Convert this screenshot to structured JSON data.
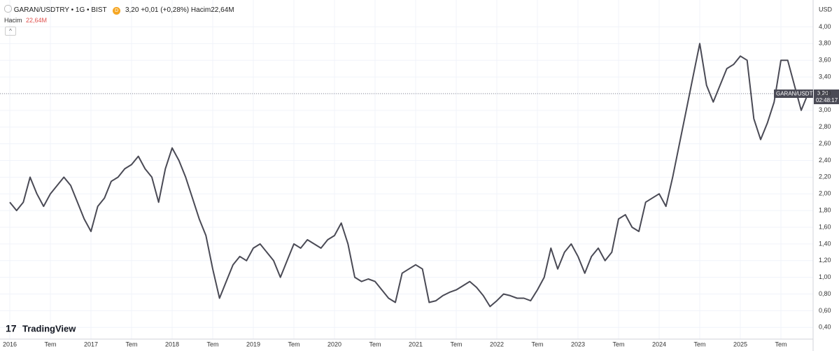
{
  "header": {
    "symbol": "GARAN/USDTRY • 1G • BIST",
    "badge": "D",
    "price": "3,20",
    "change": "+0,01 (+0,28%)",
    "volume_label": "Hacim",
    "volume_value": "22,64M"
  },
  "logo": "TradingView",
  "chart_data": {
    "type": "line",
    "y_axis_label": "USD",
    "grid": true,
    "price_tag": {
      "name": "GARAN/USDTRY",
      "value_label": "3,20",
      "countdown": "02:48:17"
    },
    "x": [
      "2016-01",
      "2016-02",
      "2016-03",
      "2016-04",
      "2016-05",
      "2016-06",
      "2016-07",
      "2016-08",
      "2016-09",
      "2016-10",
      "2016-11",
      "2016-12",
      "2017-01",
      "2017-02",
      "2017-03",
      "2017-04",
      "2017-05",
      "2017-06",
      "2017-07",
      "2017-08",
      "2017-09",
      "2017-10",
      "2017-11",
      "2017-12",
      "2018-01",
      "2018-02",
      "2018-03",
      "2018-04",
      "2018-05",
      "2018-06",
      "2018-07",
      "2018-08",
      "2018-09",
      "2018-10",
      "2018-11",
      "2018-12",
      "2019-01",
      "2019-02",
      "2019-03",
      "2019-04",
      "2019-05",
      "2019-06",
      "2019-07",
      "2019-08",
      "2019-09",
      "2019-10",
      "2019-11",
      "2019-12",
      "2020-01",
      "2020-02",
      "2020-03",
      "2020-04",
      "2020-05",
      "2020-06",
      "2020-07",
      "2020-08",
      "2020-09",
      "2020-10",
      "2020-11",
      "2020-12",
      "2021-01",
      "2021-02",
      "2021-03",
      "2021-04",
      "2021-05",
      "2021-06",
      "2021-07",
      "2021-08",
      "2021-09",
      "2021-10",
      "2021-11",
      "2021-12",
      "2022-01",
      "2022-02",
      "2022-03",
      "2022-04",
      "2022-05",
      "2022-06",
      "2022-07",
      "2022-08",
      "2022-09",
      "2022-10",
      "2022-11",
      "2022-12",
      "2023-01",
      "2023-02",
      "2023-03",
      "2023-04",
      "2023-05",
      "2023-06",
      "2023-07",
      "2023-08",
      "2023-09",
      "2023-10",
      "2023-11",
      "2023-12",
      "2024-01",
      "2024-02",
      "2024-03",
      "2024-04",
      "2024-05",
      "2024-06",
      "2024-07",
      "2024-08",
      "2024-09",
      "2024-10",
      "2024-11",
      "2024-12",
      "2025-01",
      "2025-02",
      "2025-03",
      "2025-04",
      "2025-05",
      "2025-06",
      "2025-07",
      "2025-08",
      "2025-09",
      "2025-10",
      "2025-11"
    ],
    "series": [
      {
        "name": "GARAN/USDTRY",
        "color": "#4a4a55",
        "values": [
          1.9,
          1.8,
          1.9,
          2.2,
          2.0,
          1.85,
          2.0,
          2.1,
          2.2,
          2.1,
          1.9,
          1.7,
          1.55,
          1.85,
          1.95,
          2.15,
          2.2,
          2.3,
          2.35,
          2.45,
          2.3,
          2.2,
          1.9,
          2.3,
          2.55,
          2.4,
          2.2,
          1.95,
          1.7,
          1.5,
          1.1,
          0.75,
          0.95,
          1.15,
          1.25,
          1.2,
          1.35,
          1.4,
          1.3,
          1.2,
          1.0,
          1.2,
          1.4,
          1.35,
          1.45,
          1.4,
          1.35,
          1.45,
          1.5,
          1.65,
          1.4,
          1.0,
          0.95,
          0.98,
          0.95,
          0.85,
          0.75,
          0.7,
          1.05,
          1.1,
          1.15,
          1.1,
          0.7,
          0.72,
          0.78,
          0.82,
          0.85,
          0.9,
          0.95,
          0.88,
          0.78,
          0.65,
          0.72,
          0.8,
          0.78,
          0.75,
          0.75,
          0.72,
          0.85,
          1.0,
          1.35,
          1.1,
          1.3,
          1.4,
          1.25,
          1.05,
          1.25,
          1.35,
          1.2,
          1.3,
          1.7,
          1.75,
          1.6,
          1.55,
          1.9,
          1.95,
          2.0,
          1.85,
          2.2,
          2.6,
          3.0,
          3.4,
          3.8,
          3.3,
          3.1,
          3.3,
          3.5,
          3.55,
          3.65,
          3.6,
          2.9,
          2.65,
          2.85,
          3.1,
          3.6,
          3.6,
          3.3,
          3.0,
          3.2
        ]
      }
    ],
    "ylim": [
      0.26,
      4.28
    ],
    "yticks": [
      {
        "value": 0.4,
        "label": "0,40"
      },
      {
        "value": 0.6,
        "label": "0,60"
      },
      {
        "value": 0.8,
        "label": "0,80"
      },
      {
        "value": 1.0,
        "label": "1,00"
      },
      {
        "value": 1.2,
        "label": "1,20"
      },
      {
        "value": 1.4,
        "label": "1,40"
      },
      {
        "value": 1.6,
        "label": "1,60"
      },
      {
        "value": 1.8,
        "label": "1,80"
      },
      {
        "value": 2.0,
        "label": "2,00"
      },
      {
        "value": 2.2,
        "label": "2,20"
      },
      {
        "value": 2.4,
        "label": "2,40"
      },
      {
        "value": 2.6,
        "label": "2,60"
      },
      {
        "value": 2.8,
        "label": "2,80"
      },
      {
        "value": 3.0,
        "label": "3,00"
      },
      {
        "value": 3.2,
        "label": "3,20"
      },
      {
        "value": 3.4,
        "label": "3,40"
      },
      {
        "value": 3.6,
        "label": "3,60"
      },
      {
        "value": 3.8,
        "label": "3,80"
      },
      {
        "value": 4.0,
        "label": "4,00"
      }
    ],
    "xticks": [
      {
        "value": "2016-01",
        "label": "2016"
      },
      {
        "value": "2016-07",
        "label": "Tem"
      },
      {
        "value": "2017-01",
        "label": "2017"
      },
      {
        "value": "2017-07",
        "label": "Tem"
      },
      {
        "value": "2018-01",
        "label": "2018"
      },
      {
        "value": "2018-07",
        "label": "Tem"
      },
      {
        "value": "2019-01",
        "label": "2019"
      },
      {
        "value": "2019-07",
        "label": "Tem"
      },
      {
        "value": "2020-01",
        "label": "2020"
      },
      {
        "value": "2020-07",
        "label": "Tem"
      },
      {
        "value": "2021-01",
        "label": "2021"
      },
      {
        "value": "2021-07",
        "label": "Tem"
      },
      {
        "value": "2022-01",
        "label": "2022"
      },
      {
        "value": "2022-07",
        "label": "Tem"
      },
      {
        "value": "2023-01",
        "label": "2023"
      },
      {
        "value": "2023-07",
        "label": "Tem"
      },
      {
        "value": "2024-01",
        "label": "2024"
      },
      {
        "value": "2024-07",
        "label": "Tem"
      },
      {
        "value": "2025-01",
        "label": "2025"
      },
      {
        "value": "2025-07",
        "label": "Tem"
      }
    ]
  }
}
